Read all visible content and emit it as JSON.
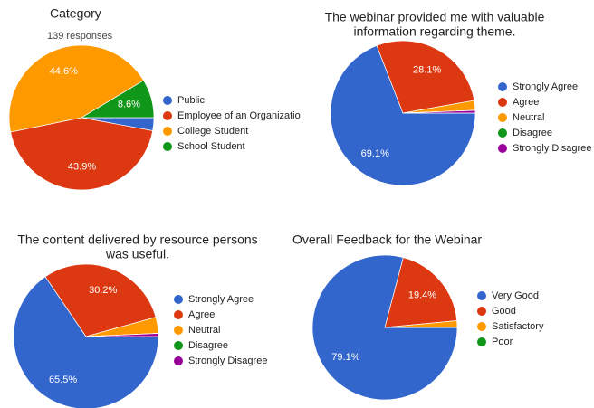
{
  "chart_data": [
    {
      "type": "pie",
      "title": [
        "Category"
      ],
      "subtitle": "139 responses",
      "categories": [
        "Public",
        "Employee of an Organizatio",
        "College Student",
        "School Student"
      ],
      "values": [
        2.9,
        43.9,
        44.6,
        8.6
      ],
      "value_labels": [
        null,
        "43.9%",
        "44.6%",
        "8.6%"
      ],
      "colors": [
        "#3366cc",
        "#dc3912",
        "#ff9900",
        "#109618"
      ]
    },
    {
      "type": "pie",
      "title": [
        "The webinar provided me with valuable",
        "information regarding theme."
      ],
      "categories": [
        "Strongly Agree",
        "Agree",
        "Neutral",
        "Disagree",
        "Strongly Disagree"
      ],
      "values": [
        69.1,
        28.1,
        2.2,
        0,
        0.6
      ],
      "value_labels": [
        "69.1%",
        "28.1%",
        null,
        null,
        null
      ],
      "colors": [
        "#3366cc",
        "#dc3912",
        "#ff9900",
        "#109618",
        "#990099"
      ]
    },
    {
      "type": "pie",
      "title": [
        "The content delivered by resource persons",
        "was useful."
      ],
      "categories": [
        "Strongly Agree",
        "Agree",
        "Neutral",
        "Disagree",
        "Strongly Disagree"
      ],
      "values": [
        65.5,
        30.2,
        3.6,
        0,
        0.7
      ],
      "value_labels": [
        "65.5%",
        "30.2%",
        null,
        null,
        null
      ],
      "colors": [
        "#3366cc",
        "#dc3912",
        "#ff9900",
        "#109618",
        "#990099"
      ]
    },
    {
      "type": "pie",
      "title": [
        "Overall Feedback for the Webinar"
      ],
      "categories": [
        "Very Good",
        "Good",
        "Satisfactory",
        "Poor"
      ],
      "values": [
        79.1,
        19.4,
        1.5,
        0
      ],
      "value_labels": [
        "79.1%",
        "19.4%",
        null,
        null
      ],
      "colors": [
        "#3366cc",
        "#dc3912",
        "#ff9900",
        "#109618"
      ]
    }
  ]
}
